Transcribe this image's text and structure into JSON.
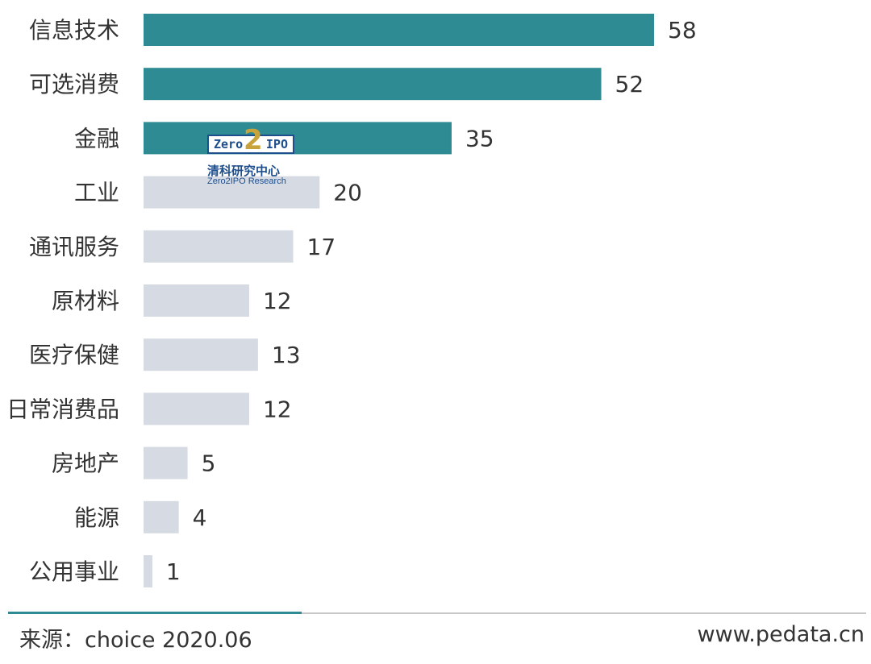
{
  "chart_data": {
    "type": "bar",
    "orientation": "horizontal",
    "categories": [
      "信息技术",
      "可选消费",
      "金融",
      "工业",
      "通讯服务",
      "原材料",
      "医疗保健",
      "日常消费品",
      "房地产",
      "能源",
      "公用事业"
    ],
    "values": [
      58,
      52,
      35,
      20,
      17,
      12,
      13,
      12,
      5,
      4,
      1
    ],
    "highlight_count": 3,
    "colors": {
      "highlight": "#2e8a93",
      "normal": "#d5dae3"
    },
    "title": "",
    "xlabel": "",
    "ylabel": "",
    "xlim": [
      0,
      58
    ],
    "grid": false,
    "legend": "none"
  },
  "watermark": {
    "left": "Zero",
    "two": "2",
    "right": "IPO",
    "cn": "清科研究中心",
    "en": "Zero2IPO Research"
  },
  "footer": {
    "source": "来源：choice 2020.06",
    "site": "www.pedata.cn",
    "accent_color": "#2e8a93"
  }
}
